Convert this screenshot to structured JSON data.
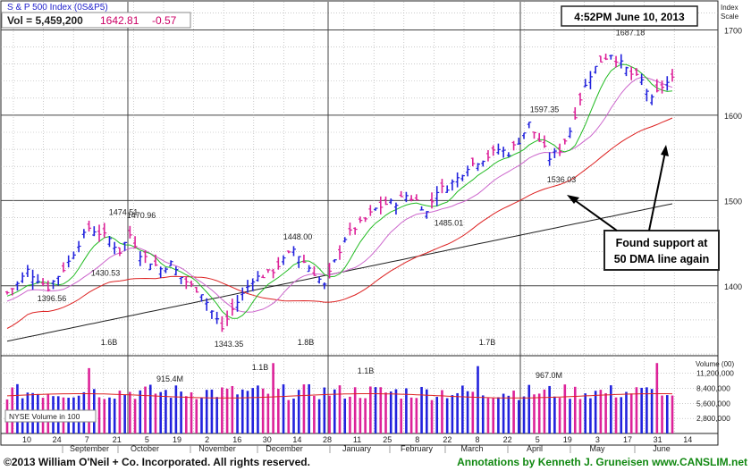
{
  "header": {
    "index_name": "S & P 500 Index",
    "ticker": "(0S&P5)",
    "vol_label": "Vol = 5,459,200",
    "last_price": "1642.81",
    "change": "-0.57",
    "timestamp": "4:52PM June 10, 2013"
  },
  "right_axis": {
    "title_line1": "Index",
    "title_line2": "Scale",
    "volume_title": "Volume (00)"
  },
  "annotation": {
    "line1": "Found support at",
    "line2": "50 DMA line again"
  },
  "footer": {
    "copyright": "©2013 William O'Neil + Co. Incorporated. All rights reserved.",
    "credit": "Annotations by Kenneth J. Gruneisen www.CANSLIM.net"
  },
  "volume_legend": "NYSE Volume in 100",
  "colors": {
    "up": "#2222dd",
    "down": "#dd2299",
    "ma50": "#dd2222",
    "ma200": "#222222",
    "ma10": "#22bb22",
    "ma21": "#cc66cc",
    "price_text": "#cc0066",
    "vol_avg": "#dd2222"
  },
  "chart_data": {
    "type": "ohlc",
    "price_axis": {
      "ticks": [
        1400,
        1500,
        1600,
        1700
      ],
      "range": [
        1318,
        1733
      ]
    },
    "volume_axis": {
      "ticks": [
        "2,800,000",
        "5,600,000",
        "8,400,000",
        "11,200,000"
      ],
      "tick_values": [
        2800000,
        5600000,
        8400000,
        11200000
      ],
      "range": [
        0,
        13800000
      ]
    },
    "x_tick_labels": [
      "10",
      "24",
      "7",
      "21",
      "5",
      "19",
      "2",
      "16",
      "30",
      "14",
      "28",
      "11",
      "25",
      "8",
      "22",
      "8",
      "22",
      "5",
      "19",
      "3",
      "17",
      "31",
      "14"
    ],
    "month_labels": [
      "September",
      "October",
      "November",
      "December",
      "January",
      "February",
      "March",
      "April",
      "May",
      "June"
    ],
    "price_annotations": [
      {
        "label": "1474.51",
        "value": 1474.51
      },
      {
        "label": "1430.53",
        "value": 1430.53
      },
      {
        "label": "1396.56",
        "value": 1396.56
      },
      {
        "label": "1470.96",
        "value": 1470.96
      },
      {
        "label": "1343.35",
        "value": 1343.35
      },
      {
        "label": "1448.00",
        "value": 1448.0
      },
      {
        "label": "1485.01",
        "value": 1485.01
      },
      {
        "label": "1597.35",
        "value": 1597.35
      },
      {
        "label": "1536.03",
        "value": 1536.03
      },
      {
        "label": "1687.18",
        "value": 1687.18
      }
    ],
    "volume_annotations": [
      "1.6B",
      "915.4M",
      "1.1B",
      "1.8B",
      "1.1B",
      "1.7B",
      "967.0M"
    ],
    "price_keyframes": [
      [
        0,
        1392
      ],
      [
        6,
        1402
      ],
      [
        12,
        1418
      ],
      [
        18,
        1408
      ],
      [
        24,
        1398
      ],
      [
        30,
        1412
      ],
      [
        36,
        1428
      ],
      [
        42,
        1450
      ],
      [
        48,
        1468
      ],
      [
        54,
        1462
      ],
      [
        60,
        1455
      ],
      [
        66,
        1440
      ],
      [
        72,
        1460
      ],
      [
        78,
        1438
      ],
      [
        84,
        1428
      ],
      [
        90,
        1420
      ],
      [
        96,
        1426
      ],
      [
        102,
        1410
      ],
      [
        108,
        1400
      ],
      [
        114,
        1392
      ],
      [
        120,
        1370
      ],
      [
        126,
        1350
      ],
      [
        132,
        1372
      ],
      [
        138,
        1390
      ],
      [
        144,
        1408
      ],
      [
        150,
        1412
      ],
      [
        156,
        1418
      ],
      [
        162,
        1430
      ],
      [
        168,
        1443
      ],
      [
        174,
        1428
      ],
      [
        180,
        1415
      ],
      [
        186,
        1400
      ],
      [
        192,
        1428
      ],
      [
        198,
        1456
      ],
      [
        204,
        1468
      ],
      [
        210,
        1478
      ],
      [
        216,
        1490
      ],
      [
        222,
        1496
      ],
      [
        228,
        1498
      ],
      [
        234,
        1506
      ],
      [
        240,
        1500
      ],
      [
        246,
        1486
      ],
      [
        252,
        1512
      ],
      [
        258,
        1516
      ],
      [
        264,
        1526
      ],
      [
        270,
        1540
      ],
      [
        276,
        1546
      ],
      [
        282,
        1552
      ],
      [
        288,
        1560
      ],
      [
        294,
        1556
      ],
      [
        300,
        1570
      ],
      [
        306,
        1590
      ],
      [
        312,
        1570
      ],
      [
        318,
        1550
      ],
      [
        324,
        1560
      ],
      [
        330,
        1582
      ],
      [
        336,
        1620
      ],
      [
        342,
        1648
      ],
      [
        348,
        1664
      ],
      [
        354,
        1672
      ],
      [
        360,
        1660
      ],
      [
        366,
        1648
      ],
      [
        372,
        1640
      ],
      [
        378,
        1618
      ],
      [
        384,
        1634
      ],
      [
        390,
        1642
      ]
    ],
    "candle_count": 131
  }
}
